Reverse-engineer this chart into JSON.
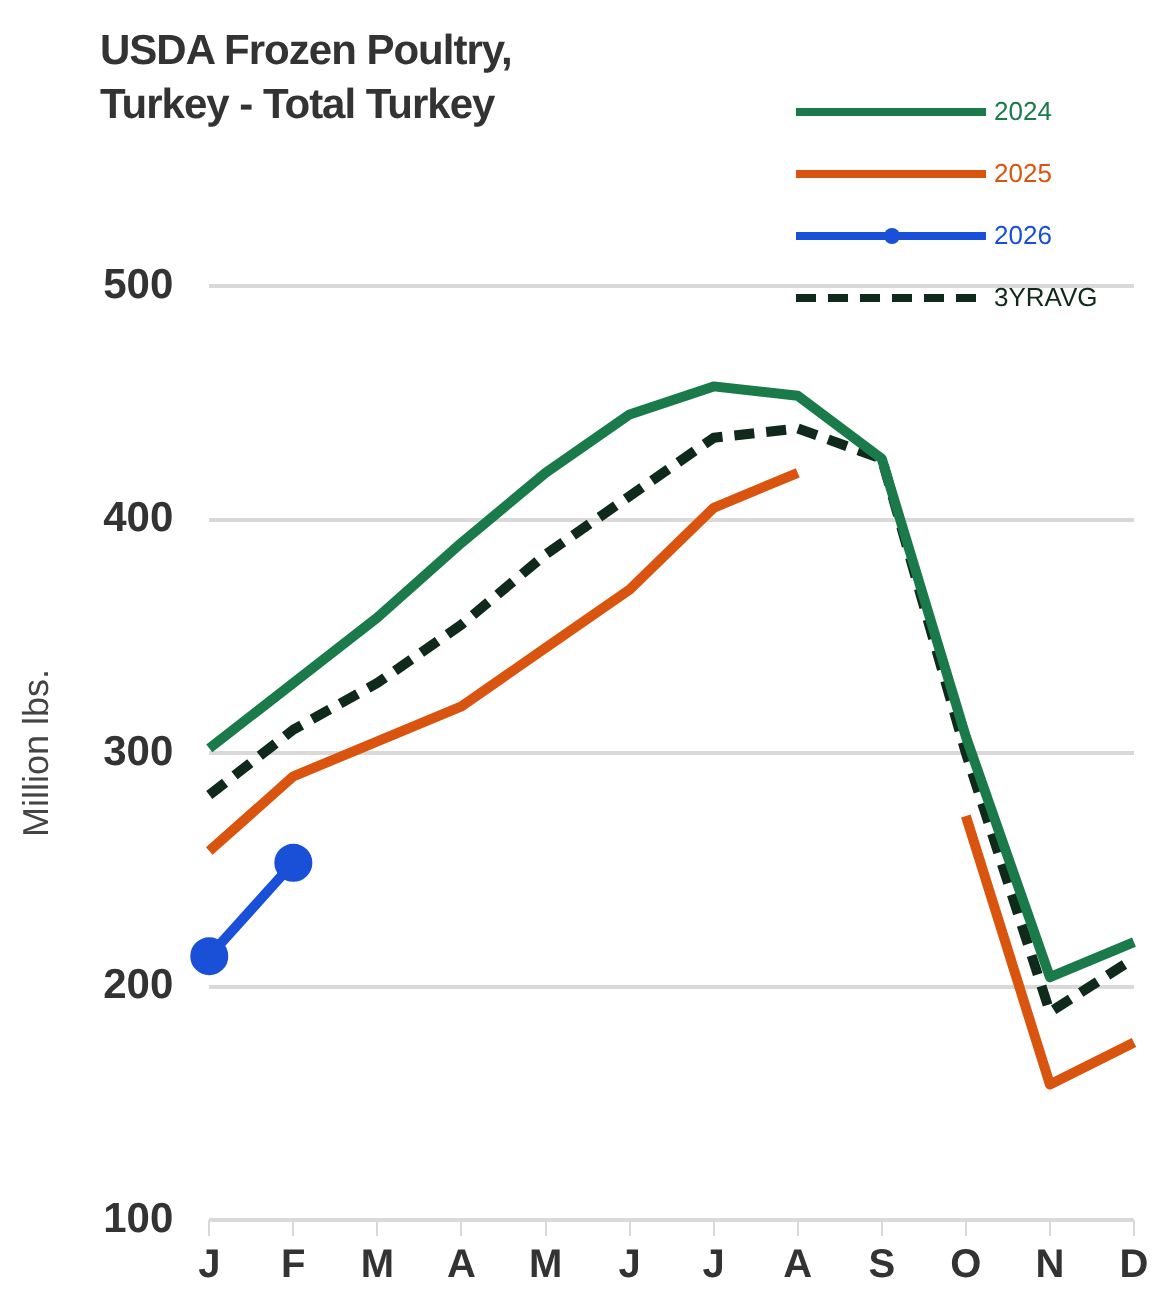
{
  "chart_data": {
    "type": "line",
    "title": "USDA Frozen Poultry, Turkey - Total Turkey",
    "ylabel": "Million lbs.",
    "categories": [
      "J",
      "F",
      "M",
      "A",
      "M",
      "J",
      "J",
      "A",
      "S",
      "O",
      "N",
      "D"
    ],
    "series": [
      {
        "name": "2024",
        "color": "#1a7a4a",
        "values": [
          302,
          330,
          358,
          390,
          420,
          445,
          457,
          453,
          426,
          307,
          204,
          219
        ]
      },
      {
        "name": "2025",
        "color": "#d9540f",
        "values": [
          258,
          290,
          305,
          320,
          345,
          370,
          405,
          420,
          null,
          273,
          158,
          176
        ]
      },
      {
        "name": "2026",
        "color": "#1a4fd8",
        "marker": "circle",
        "values": [
          213,
          253,
          null,
          null,
          null,
          null,
          null,
          null,
          null,
          null,
          null,
          null
        ]
      },
      {
        "name": "3YRAVG",
        "color": "#0f2a1a",
        "line_style": "dashed",
        "values": [
          282,
          310,
          330,
          355,
          385,
          410,
          435,
          439,
          426,
          300,
          189,
          212
        ]
      }
    ],
    "ylim": [
      100,
      500
    ],
    "yticks": [
      100,
      200,
      300,
      400,
      500
    ],
    "grid": "y",
    "legend": "top right",
    "marker": "none",
    "line_style": "solid"
  }
}
